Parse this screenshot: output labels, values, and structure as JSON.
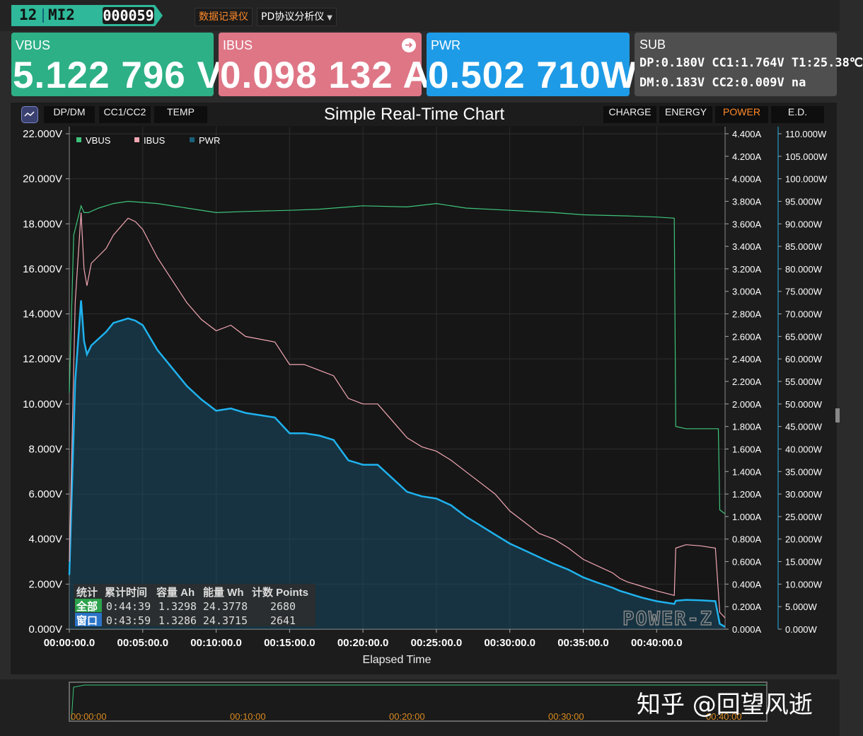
{
  "header": {
    "badge_num": "12",
    "badge_model": "MI2",
    "badge_id": "000059",
    "btn_logger": "数据记录仪",
    "btn_pd": "PD协议分析仪"
  },
  "meters": {
    "vbus_label": "VBUS",
    "vbus_value": "5.122 796 V",
    "ibus_label": "IBUS",
    "ibus_value": "0.098 132 A",
    "pwr_label": "PWR",
    "pwr_value": "0.502 710W",
    "sub_label": "SUB",
    "sub_row1": "DP:0.180V  CC1:1.764V  T1:25.38℃",
    "sub_row2": "DM:0.183V  CC2:0.009V  na"
  },
  "chart_tabs": {
    "left": [
      "DP/DM",
      "CC1/CC2",
      "TEMP"
    ],
    "right": [
      "CHARGE",
      "ENERGY",
      "POWER",
      "E.D."
    ],
    "active": "POWER"
  },
  "colors": {
    "vbus": "#3ec47a",
    "ibus": "#f2a7b4",
    "pwr": "#1fb2ee",
    "active_tab": "#ff8a2a"
  },
  "stats": {
    "headers": [
      "统计",
      "累计时间",
      "容量 Ah",
      "能量 Wh",
      "计数 Points"
    ],
    "rows": [
      {
        "label": "全部",
        "time": "0:44:39",
        "ah": "1.3298",
        "wh": "24.3778",
        "points": "2680"
      },
      {
        "label": "窗口",
        "time": "0:43:59",
        "ah": "1.3286",
        "wh": "24.3715",
        "points": "2641"
      }
    ]
  },
  "logo": "POWER-Z",
  "overview": {
    "labels": [
      "00:00:00",
      "00:10:00",
      "00:20:00",
      "00:30:00",
      "00:40:00"
    ]
  },
  "watermark": "知乎 @回望风逝",
  "chart_data": {
    "type": "line",
    "title": "Simple Real-Time Chart",
    "xlabel": "Elapsed Time",
    "x_unit": "minutes",
    "xlim": [
      0,
      44.66
    ],
    "x_ticks": [
      "00:00:00.0",
      "00:05:00.0",
      "00:10:00.0",
      "00:15:00.0",
      "00:20:00.0",
      "00:25:00.0",
      "00:30:00.0",
      "00:35:00.0",
      "00:40:00.0"
    ],
    "axes": {
      "vbus": {
        "ylim": [
          0,
          22
        ],
        "ticks": [
          "0.000V",
          "2.000V",
          "4.000V",
          "6.000V",
          "8.000V",
          "10.000V",
          "12.000V",
          "14.000V",
          "16.000V",
          "18.000V",
          "20.000V",
          "22.000V"
        ]
      },
      "ibus": {
        "ylim": [
          0,
          4.4
        ],
        "ticks": [
          "0.000A",
          "0.200A",
          "0.400A",
          "0.600A",
          "0.800A",
          "1.000A",
          "1.200A",
          "1.400A",
          "1.600A",
          "1.800A",
          "2.000A",
          "2.200A",
          "2.400A",
          "2.600A",
          "2.800A",
          "3.000A",
          "3.200A",
          "3.400A",
          "3.600A",
          "3.800A",
          "4.000A",
          "4.200A",
          "4.400A"
        ]
      },
      "pwr": {
        "ylim": [
          0,
          110
        ],
        "ticks": [
          "0.000W",
          "5.000W",
          "10.000W",
          "15.000W",
          "20.000W",
          "25.000W",
          "30.000W",
          "35.000W",
          "40.000W",
          "45.000W",
          "50.000W",
          "55.000W",
          "60.000W",
          "65.000W",
          "70.000W",
          "75.000W",
          "80.000W",
          "85.000W",
          "90.000W",
          "95.000W",
          "100.000W",
          "105.000W",
          "110.000W"
        ]
      }
    },
    "legend": "top-left",
    "grid": true,
    "series": [
      {
        "name": "VBUS",
        "axis": "vbus",
        "x": [
          0,
          0.3,
          0.8,
          1.0,
          1.3,
          2,
          3,
          4,
          5,
          6,
          8,
          10,
          12,
          15,
          17,
          20,
          23,
          25,
          27,
          30,
          33,
          35,
          38,
          40,
          41.2,
          41.3,
          42,
          43,
          43.4,
          43.6,
          44.2,
          44.3,
          44.66
        ],
        "y": [
          10.5,
          17.5,
          18.8,
          18.5,
          18.5,
          18.7,
          18.9,
          19.0,
          18.95,
          18.9,
          18.7,
          18.5,
          18.55,
          18.6,
          18.65,
          18.8,
          18.75,
          18.9,
          18.7,
          18.6,
          18.5,
          18.4,
          18.35,
          18.3,
          18.25,
          9.0,
          8.9,
          8.9,
          8.9,
          8.9,
          8.9,
          5.3,
          5.12
        ]
      },
      {
        "name": "IBUS",
        "axis": "ibus",
        "x": [
          0,
          0.4,
          0.8,
          1.0,
          1.2,
          1.5,
          2.5,
          3,
          4,
          4.5,
          5,
          6,
          7,
          8,
          9,
          10,
          11,
          12,
          14,
          15,
          16,
          17,
          18,
          19,
          20,
          21,
          22,
          23,
          24,
          25,
          26,
          27,
          28,
          29,
          30,
          31,
          32,
          33,
          34,
          35,
          36,
          37,
          37.5,
          38,
          39,
          40,
          41.2,
          41.3,
          42,
          43,
          44,
          44.3,
          44.66
        ],
        "y": [
          0.6,
          2.9,
          3.7,
          3.2,
          3.05,
          3.25,
          3.38,
          3.5,
          3.65,
          3.62,
          3.55,
          3.3,
          3.1,
          2.9,
          2.75,
          2.65,
          2.7,
          2.6,
          2.55,
          2.35,
          2.35,
          2.3,
          2.25,
          2.05,
          2.0,
          2.0,
          1.85,
          1.7,
          1.62,
          1.58,
          1.5,
          1.4,
          1.3,
          1.2,
          1.05,
          0.95,
          0.85,
          0.8,
          0.72,
          0.62,
          0.56,
          0.5,
          0.45,
          0.42,
          0.38,
          0.34,
          0.3,
          0.72,
          0.75,
          0.74,
          0.72,
          0.15,
          0.1
        ]
      },
      {
        "name": "PWR",
        "axis": "pwr",
        "x": [
          0,
          0.4,
          0.8,
          1.0,
          1.2,
          1.5,
          2.5,
          3,
          4,
          4.5,
          5,
          6,
          7,
          8,
          9,
          10,
          11,
          12,
          14,
          15,
          16,
          17,
          18,
          19,
          20,
          21,
          22,
          23,
          24,
          25,
          26,
          27,
          28,
          29,
          30,
          31,
          32,
          33,
          34,
          35,
          36,
          37,
          37.5,
          38,
          39,
          40,
          41.2,
          41.3,
          42,
          43,
          44,
          44.3,
          44.66
        ],
        "y": [
          12,
          55,
          73,
          64,
          61,
          63,
          66,
          68,
          69,
          68.5,
          67.5,
          62,
          58,
          54,
          51,
          48.5,
          49,
          48,
          47,
          43.5,
          43.5,
          43,
          42,
          37.5,
          36.5,
          36.5,
          33.5,
          30.5,
          29.5,
          29,
          27.5,
          25,
          23,
          21,
          19,
          17.5,
          16,
          14.5,
          13.2,
          11.5,
          10.3,
          9.2,
          8.5,
          8.0,
          7.0,
          6.2,
          5.6,
          6.3,
          6.5,
          6.4,
          6.2,
          1.2,
          0.5
        ]
      }
    ]
  }
}
